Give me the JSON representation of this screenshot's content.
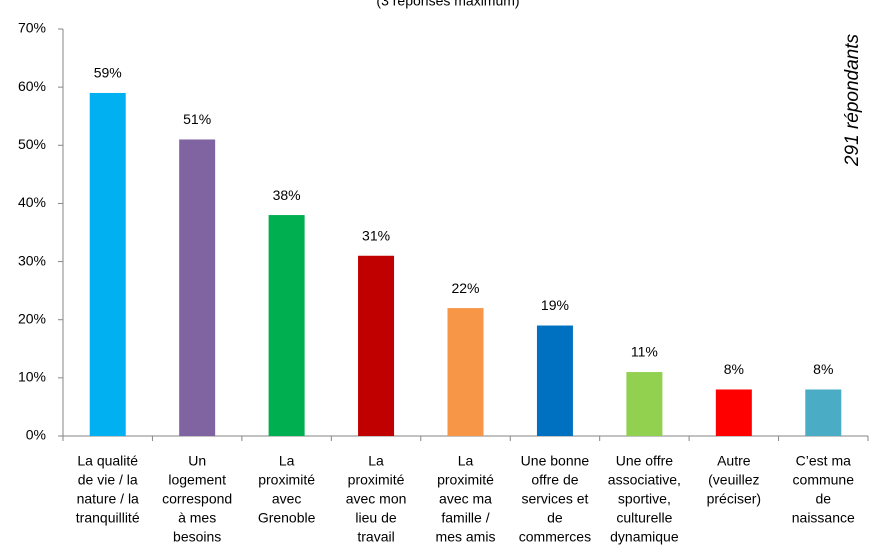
{
  "chart_data": {
    "type": "bar",
    "subtitle": "(3 réponses maximum)",
    "annotation": "291 répondants",
    "categories": [
      [
        "La qualité",
        "de vie / la",
        "nature / la",
        "tranquillité"
      ],
      [
        "Un",
        "logement",
        "correspond",
        "à mes",
        "besoins"
      ],
      [
        "La",
        "proximité",
        "avec",
        "Grenoble"
      ],
      [
        "La",
        "proximité",
        "avec mon",
        "lieu de",
        "travail"
      ],
      [
        "La",
        "proximité",
        "avec ma",
        "famille /",
        "mes amis"
      ],
      [
        "Une bonne",
        "offre de",
        "services et",
        "de",
        "commerces"
      ],
      [
        "Une offre",
        "associative,",
        "sportive,",
        "culturelle",
        "dynamique"
      ],
      [
        "Autre",
        "(veuillez",
        "préciser)"
      ],
      [
        "C’est ma",
        "commune",
        "de",
        "naissance"
      ]
    ],
    "values": [
      59,
      51,
      38,
      31,
      22,
      19,
      11,
      8,
      8
    ],
    "value_labels": [
      "59%",
      "51%",
      "38%",
      "31%",
      "22%",
      "19%",
      "11%",
      "8%",
      "8%"
    ],
    "colors": [
      "#00b0f0",
      "#8064a2",
      "#00b050",
      "#c00000",
      "#f79646",
      "#0070c0",
      "#92d050",
      "#ff0000",
      "#4bacc6"
    ],
    "ylim": [
      0,
      70
    ],
    "yticks": [
      {
        "value": 0,
        "label": "0%"
      },
      {
        "value": 10,
        "label": "10%"
      },
      {
        "value": 20,
        "label": "20%"
      },
      {
        "value": 30,
        "label": "30%"
      },
      {
        "value": 40,
        "label": "40%"
      },
      {
        "value": 50,
        "label": "50%"
      },
      {
        "value": 60,
        "label": "60%"
      },
      {
        "value": 70,
        "label": "70%"
      }
    ],
    "grid": false
  }
}
